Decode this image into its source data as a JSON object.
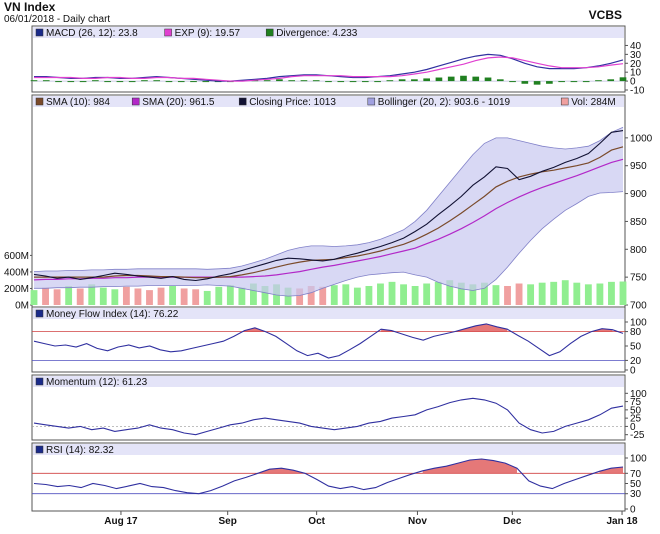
{
  "header": {
    "title": "VN Index",
    "subtitle": "06/01/2018 - Daily chart",
    "broker": "VCBS"
  },
  "colors": {
    "sma10": "#7a4a2a",
    "sma20": "#b228c8",
    "close": "#111133",
    "bollinger_fill": "#c8c8f0",
    "bollinger_line": "#8080c8",
    "vol_up": "#90ee90",
    "vol_down": "#f0a0a0",
    "macd": "#3030a0",
    "signal": "#e040d0",
    "divergence": "#208020",
    "panel_header": "#e4e4f8",
    "fill_over": "#e06060"
  },
  "chart_data": [
    {
      "type": "line",
      "panel": "macd",
      "legend": [
        {
          "swatch": "#1a2a8a",
          "text": "MACD (26, 12): 23.8"
        },
        {
          "swatch": "#e040d0",
          "text": "EXP (9): 19.57"
        },
        {
          "swatch": "#208020",
          "text": "Divergence: 4.233"
        }
      ],
      "y_ticks": [
        "40",
        "30",
        "20",
        "10",
        "0",
        "-10"
      ],
      "ylim": [
        -10,
        45
      ],
      "series": [
        {
          "values": [
            5,
            5,
            4,
            3,
            3,
            4,
            4,
            3,
            3,
            4,
            5,
            4,
            3,
            2,
            1,
            0,
            0,
            1,
            2,
            3,
            5,
            6,
            7,
            7,
            6,
            5,
            4,
            4,
            5,
            6,
            8,
            10,
            13,
            17,
            21,
            25,
            28,
            30,
            29,
            25,
            20,
            16,
            14,
            14,
            14,
            15,
            17,
            20,
            23.8
          ]
        },
        {
          "values": [
            4,
            4,
            4,
            4,
            3,
            3,
            4,
            4,
            3,
            3,
            4,
            4,
            3,
            3,
            2,
            1,
            0,
            0,
            1,
            2,
            3,
            5,
            6,
            6,
            6,
            6,
            5,
            5,
            5,
            5,
            6,
            8,
            10,
            13,
            16,
            19,
            23,
            26,
            27,
            26,
            23,
            20,
            17,
            15,
            15,
            15,
            16,
            18,
            19.57
          ]
        },
        {
          "values": [
            1,
            1,
            0,
            -1,
            0,
            1,
            0,
            -1,
            0,
            1,
            1,
            0,
            0,
            -1,
            -1,
            -1,
            0,
            1,
            1,
            1,
            2,
            1,
            1,
            1,
            0,
            -1,
            -1,
            -1,
            0,
            1,
            2,
            2,
            3,
            4,
            5,
            6,
            5,
            4,
            2,
            -1,
            -3,
            -4,
            -3,
            -1,
            -1,
            0,
            1,
            2,
            4.233
          ]
        }
      ]
    },
    {
      "type": "line",
      "panel": "price",
      "legend": [
        {
          "swatch": "#7a4a2a",
          "text": "SMA (10): 984"
        },
        {
          "swatch": "#b228c8",
          "text": "SMA (20): 961.5"
        },
        {
          "swatch": "#111133",
          "text": "Closing Price: 1013"
        },
        {
          "swatch": "#a0a0e0",
          "text": "Bollinger (20, 2): 903.6 - 1019"
        },
        {
          "swatch": "#f0a0a0",
          "text": "Vol: 284M"
        }
      ],
      "y_ticks": [
        "1000",
        "950",
        "900",
        "850",
        "800",
        "750",
        "700"
      ],
      "vol_ticks": [
        "600M",
        "400M",
        "200M",
        "0M"
      ],
      "ylim": [
        700,
        1050
      ],
      "vol_max": 750,
      "close": [
        755,
        752,
        748,
        750,
        746,
        749,
        753,
        757,
        755,
        752,
        750,
        748,
        751,
        746,
        744,
        747,
        752,
        756,
        762,
        768,
        774,
        780,
        784,
        783,
        781,
        779,
        782,
        788,
        793,
        799,
        805,
        812,
        820,
        832,
        845,
        862,
        878,
        895,
        915,
        930,
        948,
        945,
        925,
        931,
        940,
        947,
        956,
        963,
        972,
        990,
        1010,
        1013
      ],
      "sma10": [
        750,
        750,
        750,
        750,
        750,
        750,
        750,
        752,
        753,
        753,
        752,
        751,
        751,
        750,
        749,
        749,
        750,
        751,
        754,
        758,
        763,
        768,
        773,
        777,
        780,
        781,
        782,
        785,
        788,
        792,
        797,
        803,
        809,
        817,
        827,
        838,
        851,
        865,
        880,
        895,
        912,
        922,
        930,
        935,
        939,
        942,
        946,
        950,
        955,
        965,
        978,
        984
      ],
      "sma20": [
        745,
        746,
        746,
        747,
        747,
        748,
        748,
        749,
        749,
        750,
        750,
        750,
        750,
        750,
        750,
        750,
        750,
        750,
        750,
        751,
        752,
        754,
        757,
        760,
        764,
        768,
        771,
        775,
        779,
        783,
        787,
        792,
        797,
        802,
        810,
        818,
        827,
        837,
        848,
        860,
        873,
        884,
        894,
        903,
        911,
        918,
        925,
        932,
        940,
        948,
        956,
        961.5
      ],
      "bb_upper": [
        760,
        761,
        761,
        762,
        762,
        763,
        763,
        764,
        764,
        765,
        765,
        765,
        765,
        765,
        765,
        764,
        765,
        766,
        770,
        776,
        782,
        790,
        798,
        803,
        806,
        806,
        805,
        806,
        808,
        812,
        818,
        826,
        835,
        850,
        870,
        895,
        920,
        945,
        970,
        990,
        1000,
        1000,
        995,
        990,
        985,
        982,
        980,
        982,
        985,
        995,
        1010,
        1019
      ],
      "bb_lower": [
        730,
        730,
        731,
        731,
        732,
        732,
        733,
        733,
        734,
        734,
        735,
        735,
        735,
        735,
        735,
        736,
        735,
        734,
        730,
        726,
        722,
        718,
        716,
        717,
        722,
        730,
        737,
        744,
        750,
        754,
        756,
        758,
        759,
        754,
        750,
        741,
        734,
        729,
        726,
        730,
        746,
        768,
        793,
        816,
        837,
        854,
        870,
        882,
        895,
        901,
        902,
        903.6
      ],
      "volume": [
        180,
        210,
        190,
        230,
        200,
        250,
        210,
        190,
        220,
        200,
        180,
        210,
        230,
        200,
        190,
        170,
        220,
        240,
        210,
        260,
        230,
        250,
        210,
        200,
        230,
        220,
        240,
        250,
        210,
        230,
        260,
        280,
        250,
        230,
        260,
        280,
        300,
        270,
        250,
        270,
        240,
        230,
        260,
        250,
        270,
        280,
        300,
        270,
        250,
        260,
        280,
        284
      ]
    },
    {
      "type": "line",
      "panel": "money_flow",
      "legend": [
        {
          "swatch": "#1a2a8a",
          "text": "Money Flow Index (14): 76.22"
        }
      ],
      "y_ticks": [
        "100",
        "80",
        "50",
        "20",
        "0"
      ],
      "ylim": [
        0,
        100
      ],
      "thresholds": [
        80,
        20
      ],
      "values": [
        60,
        55,
        50,
        52,
        48,
        55,
        45,
        40,
        48,
        52,
        46,
        50,
        42,
        38,
        40,
        45,
        50,
        55,
        60,
        70,
        82,
        88,
        80,
        70,
        55,
        40,
        30,
        35,
        25,
        30,
        42,
        55,
        70,
        85,
        82,
        75,
        68,
        62,
        70,
        75,
        80,
        86,
        92,
        96,
        90,
        85,
        72,
        60,
        45,
        30,
        38,
        55,
        70,
        80,
        86,
        84,
        76.22
      ]
    },
    {
      "type": "line",
      "panel": "momentum",
      "legend": [
        {
          "swatch": "#1a2a8a",
          "text": "Momentum (12): 61.23"
        }
      ],
      "y_ticks": [
        "100",
        "75",
        "50",
        "25",
        "0",
        "-25"
      ],
      "ylim": [
        -35,
        110
      ],
      "values": [
        10,
        5,
        0,
        -5,
        0,
        -10,
        -5,
        -15,
        -10,
        -5,
        5,
        -5,
        -10,
        -20,
        -25,
        -15,
        -5,
        5,
        10,
        20,
        25,
        20,
        15,
        10,
        0,
        -5,
        -10,
        -5,
        0,
        10,
        15,
        25,
        30,
        35,
        50,
        60,
        72,
        80,
        85,
        80,
        70,
        50,
        10,
        -10,
        -20,
        -15,
        0,
        10,
        20,
        35,
        55,
        61.23
      ]
    },
    {
      "type": "line",
      "panel": "rsi",
      "legend": [
        {
          "swatch": "#1a2a8a",
          "text": "RSI (14): 82.32"
        }
      ],
      "y_ticks": [
        "100",
        "70",
        "50",
        "30",
        "0"
      ],
      "ylim": [
        0,
        100
      ],
      "thresholds": [
        70,
        30
      ],
      "values": [
        50,
        48,
        44,
        46,
        42,
        50,
        46,
        40,
        45,
        50,
        44,
        42,
        36,
        32,
        30,
        36,
        45,
        55,
        62,
        70,
        78,
        80,
        76,
        70,
        58,
        45,
        40,
        44,
        38,
        42,
        52,
        60,
        68,
        75,
        80,
        84,
        90,
        96,
        98,
        95,
        90,
        80,
        55,
        45,
        40,
        50,
        58,
        66,
        74,
        80,
        82.32
      ]
    }
  ],
  "x_axis": {
    "labels": [
      "Aug 17",
      "Sep",
      "Oct",
      "Nov",
      "Dec",
      "Jan 18"
    ]
  }
}
